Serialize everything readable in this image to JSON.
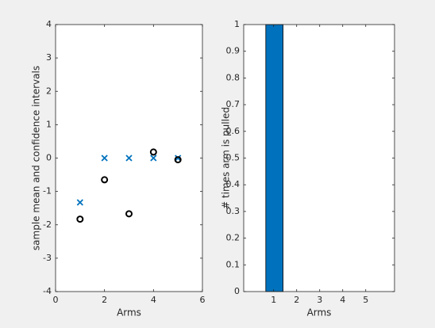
{
  "chart_data": [
    {
      "type": "scatter",
      "x": [
        1,
        2,
        3,
        4,
        5
      ],
      "series": [
        {
          "color": "#0072bd",
          "marker": "x",
          "values": [
            -1.33,
            0,
            0,
            0,
            0
          ]
        },
        {
          "color": "#000000",
          "marker": "o",
          "values": [
            -1.83,
            -0.65,
            -1.67,
            0.18,
            -0.05
          ]
        }
      ],
      "xlabel": "Arms",
      "ylabel": "sample mean and confidence intervals",
      "xlim": [
        0,
        6
      ],
      "xticks": [
        0,
        2,
        4,
        6
      ],
      "ylim": [
        -4,
        4
      ],
      "yticks": [
        -4,
        -3,
        -2,
        -1,
        0,
        1,
        2,
        3,
        4
      ]
    },
    {
      "type": "bar",
      "x": [
        1,
        2,
        3,
        4,
        5
      ],
      "values": [
        1,
        0,
        0,
        0,
        0
      ],
      "color": "#0072bd",
      "xlabel": "Arms",
      "ylabel": "# times arm is pulled",
      "xlim": [
        -0.3,
        6.25
      ],
      "xticks": [
        1,
        2,
        3,
        4,
        5
      ],
      "ylim": [
        0,
        1
      ],
      "yticks": [
        0,
        0.1,
        0.2,
        0.3,
        0.4,
        0.5,
        0.6,
        0.7,
        0.8,
        0.9,
        1
      ]
    }
  ]
}
